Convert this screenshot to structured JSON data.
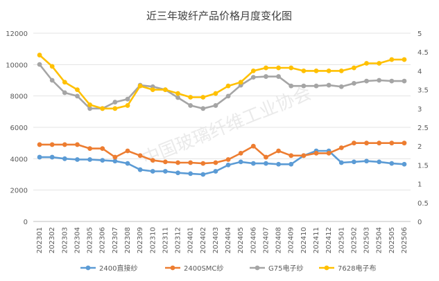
{
  "chart_data": {
    "type": "line",
    "title": "近三年玻纤产品价格月度变化图",
    "watermark": "中国玻璃纤维工业协会",
    "categories": [
      "202301",
      "202302",
      "202303",
      "202304",
      "202305",
      "202306",
      "202307",
      "202308",
      "202309",
      "202310",
      "202311",
      "202312",
      "202401",
      "202402",
      "202403",
      "202404",
      "202405",
      "202406",
      "202407",
      "202408",
      "202409",
      "202410",
      "202411",
      "202412",
      "202501",
      "202502",
      "202503",
      "202504",
      "202505",
      "202506"
    ],
    "y_left": {
      "min": 0,
      "max": 12000,
      "step": 2000,
      "ticks": [
        "0",
        "2000",
        "4000",
        "6000",
        "8000",
        "10000",
        "12000"
      ]
    },
    "y_right": {
      "min": 0,
      "max": 5,
      "step": 0.5,
      "ticks": [
        "0",
        "0.5",
        "1",
        "1.5",
        "2",
        "2.5",
        "3",
        "3.5",
        "4",
        "4.5",
        "5"
      ]
    },
    "grid": true,
    "legend_position": "bottom",
    "series": [
      {
        "name": "2400直接纱",
        "axis": "left",
        "color": "#5B9BD5",
        "values": [
          4100,
          4100,
          4000,
          3950,
          3950,
          3900,
          3850,
          3700,
          3300,
          3200,
          3200,
          3100,
          3050,
          3000,
          3200,
          3600,
          3800,
          3700,
          3700,
          3650,
          3650,
          4200,
          4500,
          4500,
          3750,
          3800,
          3850,
          3800,
          3700,
          3650
        ]
      },
      {
        "name": "2400SMC纱",
        "axis": "left",
        "color": "#ED7D31",
        "values": [
          4900,
          4900,
          4900,
          4900,
          4650,
          4650,
          4100,
          4500,
          4200,
          3900,
          3800,
          3750,
          3750,
          3700,
          3750,
          3950,
          4350,
          4800,
          4100,
          4500,
          4200,
          4200,
          4350,
          4350,
          4700,
          5000,
          5000,
          5000,
          5000,
          5000
        ]
      },
      {
        "name": "G75电子纱",
        "axis": "right",
        "color": "#A5A5A5",
        "values": [
          4.17,
          3.75,
          3.42,
          3.33,
          3.0,
          3.0,
          3.17,
          3.25,
          3.62,
          3.58,
          3.5,
          3.29,
          3.08,
          3.0,
          3.08,
          3.33,
          3.62,
          3.83,
          3.85,
          3.85,
          3.6,
          3.6,
          3.6,
          3.62,
          3.58,
          3.67,
          3.73,
          3.75,
          3.73,
          3.73
        ]
      },
      {
        "name": "7628电子布",
        "axis": "right",
        "color": "#FFC000",
        "values": [
          4.42,
          4.12,
          3.7,
          3.5,
          3.1,
          3.0,
          3.0,
          3.08,
          3.6,
          3.5,
          3.5,
          3.4,
          3.3,
          3.3,
          3.4,
          3.6,
          3.7,
          4.0,
          4.08,
          4.08,
          4.08,
          4.0,
          4.0,
          4.0,
          4.0,
          4.08,
          4.2,
          4.2,
          4.3,
          4.3
        ]
      }
    ]
  }
}
